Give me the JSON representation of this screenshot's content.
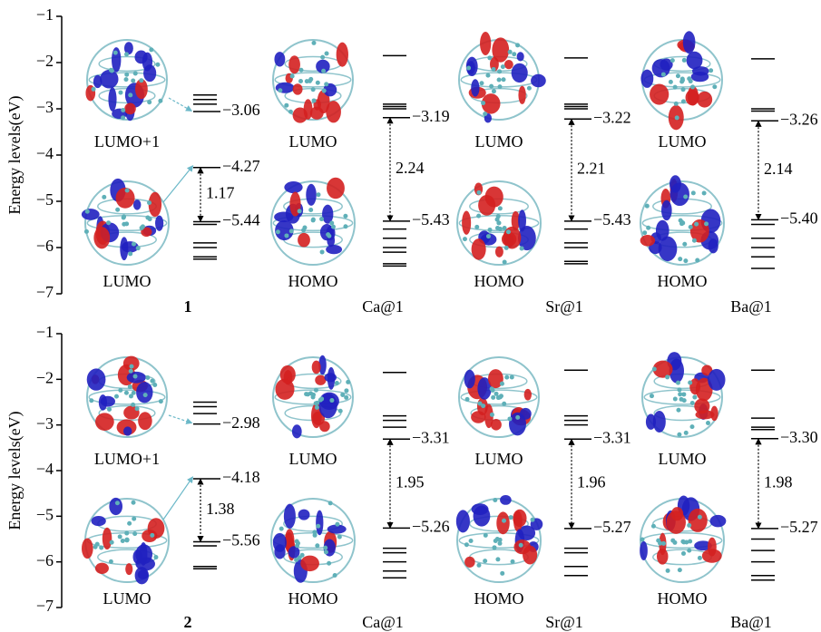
{
  "chart_data": [
    {
      "type": "energy-level",
      "ylabel": "Energy levels(eV)",
      "ylim": [
        -7,
        -1
      ],
      "yticks": [
        {
          "value": -1,
          "label": "−1"
        },
        {
          "value": -2,
          "label": "−2"
        },
        {
          "value": -3,
          "label": "−3"
        },
        {
          "value": -4,
          "label": "−4"
        },
        {
          "value": -5,
          "label": "−5"
        },
        {
          "value": -6,
          "label": "−6"
        },
        {
          "value": -7,
          "label": "−7"
        }
      ],
      "groups": [
        {
          "name": "1",
          "orbital_labels": [
            "LUMO+1",
            "LUMO"
          ],
          "values": [
            -3.06,
            -4.27,
            -5.44
          ],
          "value_labels": [
            "−3.06",
            "−4.27",
            "−5.44"
          ],
          "gap": 1.17,
          "levels": [
            -2.7,
            -2.8,
            -2.9,
            -5.5,
            -5.9,
            -6.0,
            -6.2,
            -6.25
          ]
        },
        {
          "name": "Ca@1",
          "orbital_labels": [
            "LUMO",
            "HOMO"
          ],
          "values": [
            -3.19,
            -5.43
          ],
          "value_labels": [
            "−3.19",
            "−5.43"
          ],
          "gap": 2.24,
          "levels": [
            -1.85,
            -2.9,
            -2.95,
            -3.0,
            -5.6,
            -5.8,
            -6.0,
            -6.1,
            -6.35,
            -6.4
          ]
        },
        {
          "name": "Sr@1",
          "orbital_labels": [
            "LUMO",
            "HOMO"
          ],
          "values": [
            -3.22,
            -5.43
          ],
          "value_labels": [
            "−3.22",
            "−5.43"
          ],
          "gap": 2.21,
          "levels": [
            -1.9,
            -2.9,
            -2.95,
            -3.0,
            -5.6,
            -5.9,
            -6.0,
            -6.3,
            -6.35
          ]
        },
        {
          "name": "Ba@1",
          "orbital_labels": [
            "LUMO",
            "HOMO"
          ],
          "values": [
            -3.26,
            -5.4
          ],
          "value_labels": [
            "−3.26",
            "−5.40"
          ],
          "gap": 2.14,
          "levels": [
            -1.92,
            -3.0,
            -3.05,
            -5.5,
            -5.8,
            -6.0,
            -6.2,
            -6.45
          ]
        }
      ]
    },
    {
      "type": "energy-level",
      "ylabel": "Energy levels(eV)",
      "ylim": [
        -7,
        -1
      ],
      "yticks": [
        {
          "value": -1,
          "label": "−1"
        },
        {
          "value": -2,
          "label": "−2"
        },
        {
          "value": -3,
          "label": "−3"
        },
        {
          "value": -4,
          "label": "−4"
        },
        {
          "value": -5,
          "label": "−5"
        },
        {
          "value": -6,
          "label": "−6"
        },
        {
          "value": -7,
          "label": "−7"
        }
      ],
      "groups": [
        {
          "name": "2",
          "orbital_labels": [
            "LUMO+1",
            "LUMO"
          ],
          "values": [
            -2.98,
            -4.18,
            -5.56
          ],
          "value_labels": [
            "−2.98",
            "−4.18",
            "−5.56"
          ],
          "gap": 1.38,
          "levels": [
            -2.5,
            -2.6,
            -2.75,
            -5.65,
            -6.1,
            -6.15
          ]
        },
        {
          "name": "Ca@1",
          "orbital_labels": [
            "LUMO",
            "HOMO"
          ],
          "values": [
            -3.31,
            -5.26
          ],
          "value_labels": [
            "−3.31",
            "−5.26"
          ],
          "gap": 1.95,
          "levels": [
            -1.85,
            -2.8,
            -2.9,
            -3.05,
            -5.7,
            -5.8,
            -6.0,
            -6.2,
            -6.35
          ]
        },
        {
          "name": "Sr@1",
          "orbital_labels": [
            "LUMO",
            "HOMO"
          ],
          "values": [
            -3.31,
            -5.27
          ],
          "value_labels": [
            "−3.31",
            "−5.27"
          ],
          "gap": 1.96,
          "levels": [
            -1.8,
            -2.8,
            -2.9,
            -3.0,
            -5.7,
            -5.8,
            -6.1,
            -6.3
          ]
        },
        {
          "name": "Ba@1",
          "orbital_labels": [
            "LUMO",
            "HOMO"
          ],
          "values": [
            -3.3,
            -5.27
          ],
          "value_labels": [
            "−3.30",
            "−5.27"
          ],
          "gap": 1.98,
          "levels": [
            -1.8,
            -2.85,
            -3.05,
            -3.1,
            -5.5,
            -5.75,
            -6.0,
            -6.3,
            -6.4
          ]
        }
      ]
    }
  ]
}
